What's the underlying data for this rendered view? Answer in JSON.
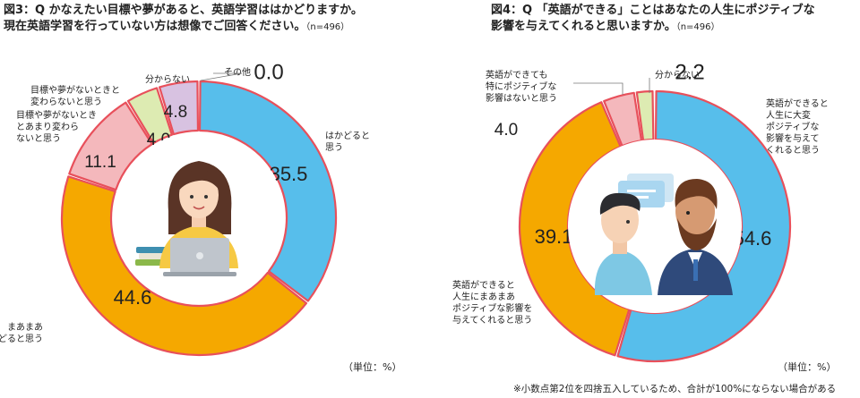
{
  "charts": [
    {
      "title_line1": "図3：Q かなえたい目標や夢があると、英語学習ははかどりますか。",
      "title_line2": "現在英語学習を行っていない方は想像でご回答ください。",
      "n_label": "（n=496）",
      "unit_label": "（単位：%）"
    },
    {
      "title_line1": "図4：Q 「英語ができる」ことはあなたの人生にポジティブな",
      "title_line2": "影響を与えてくれると思いますか。",
      "n_label": "（n=496）",
      "unit_label": "（単位：%）"
    }
  ],
  "footnote": "※小数点第2位を四捨五入しているため、合計が100%にならない場合がある",
  "chart_data": [
    {
      "type": "pie",
      "donut": true,
      "title": "図3：Q かなえたい目標や夢があると、英語学習ははかどりますか。現在英語学習を行っていない方は想像でご回答ください。（n=496）",
      "unit": "%",
      "slices": [
        {
          "label_lines": [
            "はかどると",
            "思う"
          ],
          "value": 35.5,
          "value_label": "35.5",
          "color": "#57BEEB"
        },
        {
          "label_lines": [
            "まあまあ",
            "はかどると思う"
          ],
          "value": 44.6,
          "value_label": "44.6",
          "color": "#F5A800"
        },
        {
          "label_lines": [
            "目標や夢がないとき",
            "とあまり変わら",
            "ないと思う"
          ],
          "value": 11.1,
          "value_label": "11.1",
          "color": "#F4B8BC"
        },
        {
          "label_lines": [
            "目標や夢がないときと",
            "変わらないと思う"
          ],
          "value": 4.0,
          "value_label": "4.0",
          "color": "#DDEBB2"
        },
        {
          "label_lines": [
            "分からない"
          ],
          "value": 4.8,
          "value_label": "4.8",
          "color": "#D8C2E1"
        },
        {
          "label_lines": [
            "その他"
          ],
          "value": 0.0,
          "value_label": "0.0",
          "color": "#ffffff"
        }
      ],
      "border_color": "#E8505B"
    },
    {
      "type": "pie",
      "donut": true,
      "title": "図4：Q 「英語ができる」ことはあなたの人生にポジティブな影響を与えてくれると思いますか。（n=496）",
      "unit": "%",
      "slices": [
        {
          "label_lines": [
            "英語ができると",
            "人生に大変",
            "ポジティブな",
            "影響を与えて",
            "くれると思う"
          ],
          "value": 54.6,
          "value_label": "54.6",
          "color": "#57BEEB"
        },
        {
          "label_lines": [
            "英語ができると",
            "人生にまあまあ",
            "ポジティブな影響を",
            "与えてくれると思う"
          ],
          "value": 39.1,
          "value_label": "39.1",
          "color": "#F5A800"
        },
        {
          "label_lines": [
            "英語ができても",
            "特にポジティブな",
            "影響はないと思う"
          ],
          "value": 4.0,
          "value_label": "4.0",
          "color": "#F4B8BC"
        },
        {
          "label_lines": [
            "分からない"
          ],
          "value": 2.2,
          "value_label": "2.2",
          "color": "#DDEBB2"
        }
      ],
      "border_color": "#E8505B"
    }
  ]
}
